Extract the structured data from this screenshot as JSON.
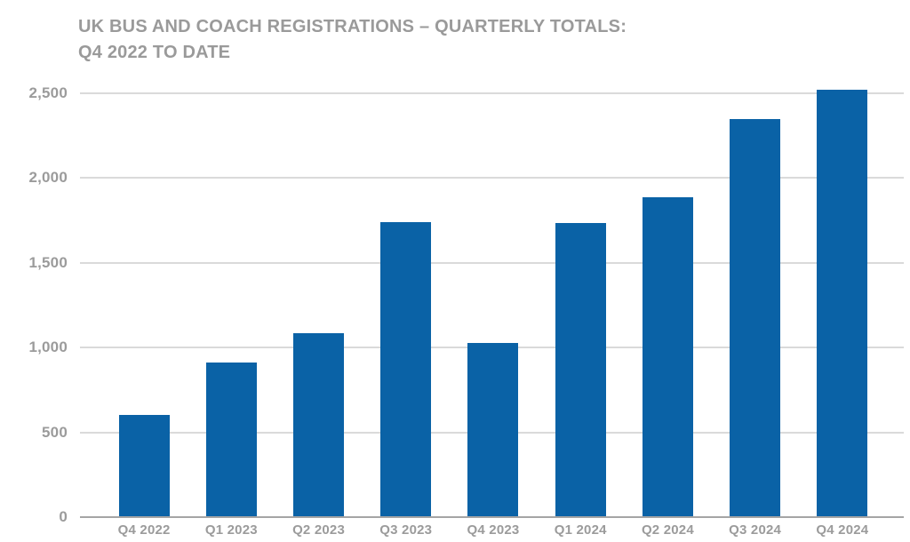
{
  "chart_data": {
    "type": "bar",
    "title_line1": "UK BUS AND COACH REGISTRATIONS – QUARTERLY TOTALS:",
    "title_line2": "Q4 2022 TO DATE",
    "categories": [
      "Q4 2022",
      "Q1 2023",
      "Q2 2023",
      "Q3 2023",
      "Q4 2023",
      "Q1 2024",
      "Q2 2024",
      "Q3 2024",
      "Q4 2024"
    ],
    "values": [
      605,
      910,
      1085,
      1740,
      1025,
      1735,
      1885,
      2350,
      2520
    ],
    "xlabel": "",
    "ylabel": "",
    "ylim": [
      0,
      2500
    ],
    "yticks": [
      0,
      500,
      1000,
      1500,
      2000,
      2500
    ],
    "ytick_labels": [
      "0",
      "500",
      "1,000",
      "1,500",
      "2,000",
      "2,500"
    ],
    "grid": true,
    "legend": false,
    "colors": {
      "bar": "#0A62A6",
      "gridline": "#DADADA",
      "axis_line": "#A5A5A5",
      "title_text": "#9A9A9A",
      "tick_text": "#9B9B9B"
    }
  }
}
